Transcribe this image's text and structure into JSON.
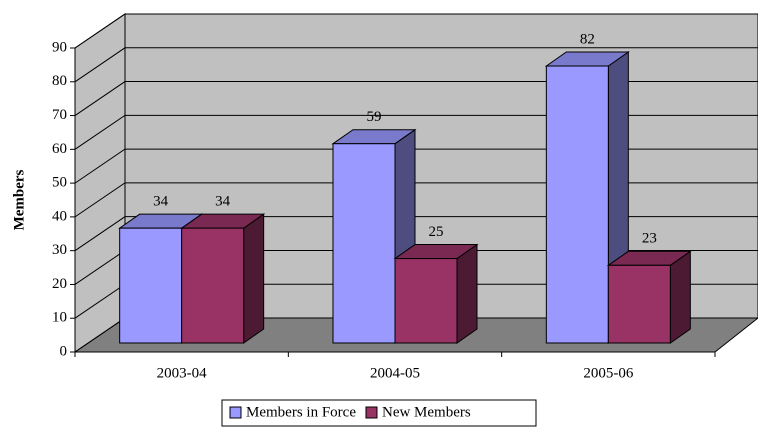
{
  "chart_data": {
    "type": "bar3d",
    "y_label": "Members",
    "categories": [
      "2003-04",
      "2004-05",
      "2005-06"
    ],
    "series": [
      {
        "name": "Members in Force",
        "color": "#9999ff",
        "values": [
          34,
          59,
          82
        ]
      },
      {
        "name": "New Members",
        "color": "#993366",
        "values": [
          34,
          25,
          23
        ]
      }
    ],
    "ylim": [
      0,
      90
    ],
    "yticks": [
      0,
      10,
      20,
      30,
      40,
      50,
      60,
      70,
      80,
      90
    ],
    "grid": true,
    "legend": "bottom"
  }
}
